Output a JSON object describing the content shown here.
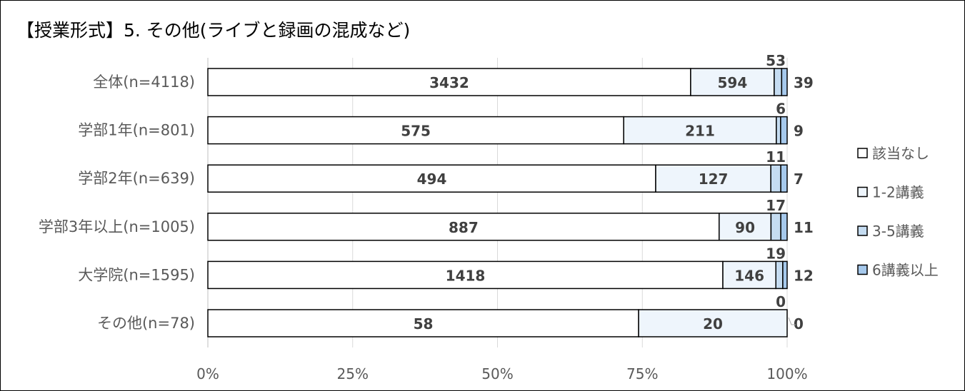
{
  "title": "【授業形式】5. その他(ライブと録画の混成など)",
  "chart_data": {
    "type": "bar",
    "orientation": "horizontal",
    "stacked": "percent",
    "title": "【授業形式】5. その他(ライブと録画の混成など)",
    "categories": [
      "全体(n=4118)",
      "学部1年(n=801)",
      "学部2年(n=639)",
      "学部3年以上(n=1005)",
      "大学院(n=1595)",
      "その他(n=78)"
    ],
    "series": [
      {
        "name": "該当なし",
        "color": "#ffffff",
        "values": [
          3432,
          575,
          494,
          887,
          1418,
          58
        ]
      },
      {
        "name": "1-2講義",
        "color": "#eef5fc",
        "values": [
          594,
          211,
          127,
          90,
          146,
          20
        ]
      },
      {
        "name": "3-5講義",
        "color": "#c5dcf1",
        "values": [
          53,
          6,
          11,
          17,
          19,
          0
        ]
      },
      {
        "name": "6講義以上",
        "color": "#a6c9ec",
        "values": [
          39,
          9,
          7,
          11,
          12,
          0
        ]
      }
    ],
    "xticks": [
      "0%",
      "25%",
      "50%",
      "75%",
      "100%"
    ],
    "xlim": [
      0,
      100
    ],
    "grid": true,
    "legend": "right"
  }
}
